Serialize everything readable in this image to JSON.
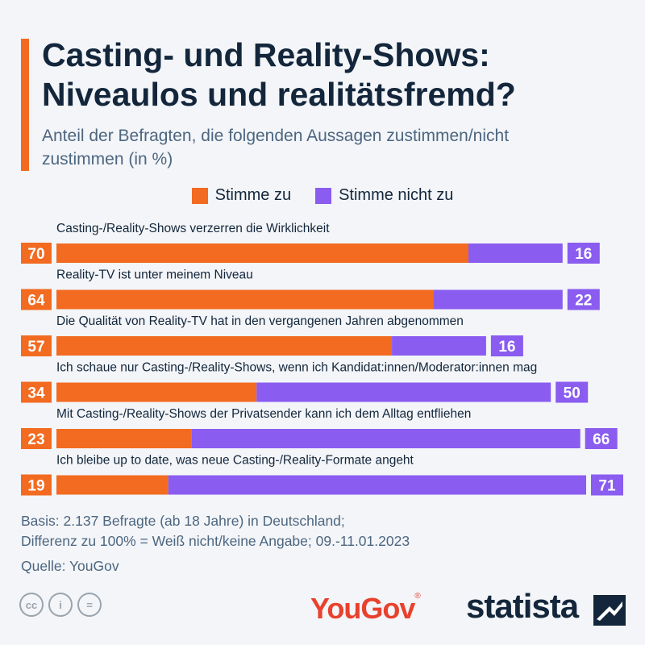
{
  "title": "Casting- und Reality-Shows: Niveaulos und realitätsfremd?",
  "subtitle": "Anteil der Befragten, die folgenden Aussagen zustimmen/nicht zustimmen (in %)",
  "legend": {
    "agree": "Stimme zu",
    "disagree": "Stimme nicht zu"
  },
  "colors": {
    "agree": "#f26b21",
    "disagree": "#8a5cf0",
    "accent": "#f26b21"
  },
  "chart_data": {
    "type": "bar",
    "orientation": "horizontal",
    "stacked": true,
    "title": "Casting- und Reality-Shows: Niveaulos und realitätsfremd?",
    "xlabel": "",
    "ylabel": "",
    "xlim": [
      0,
      100
    ],
    "categories": [
      "Casting-/Reality-Shows verzerren die Wirklichkeit",
      "Reality-TV ist unter meinem Niveau",
      "Die Qualität von Reality-TV hat in den vergangenen Jahren abgenommen",
      "Ich schaue nur Casting-/Reality-Shows, wenn ich Kandidat:innen/Moderator:innen mag",
      "Mit Casting-/Reality-Shows der Privatsender kann ich dem Alltag entfliehen",
      "Ich bleibe up to date, was neue Casting-/Reality-Formate angeht"
    ],
    "series": [
      {
        "name": "Stimme zu",
        "values": [
          70,
          64,
          57,
          34,
          23,
          19
        ]
      },
      {
        "name": "Stimme nicht zu",
        "values": [
          16,
          22,
          16,
          50,
          66,
          71
        ]
      }
    ]
  },
  "footer": {
    "basis": "Basis: 2.137 Befragte (ab 18 Jahre) in Deutschland;",
    "note": "Differenz zu 100% = Weiß nicht/keine Angabe; 09.-11.01.2023",
    "source": "Quelle: YouGov"
  },
  "license_icons": [
    "cc-icon",
    "attribution-icon",
    "no-derivatives-icon"
  ],
  "license": {
    "cc": "cc",
    "by": "i",
    "nd": "="
  },
  "brands": {
    "yougov": "YouGov",
    "statista": "statista"
  }
}
